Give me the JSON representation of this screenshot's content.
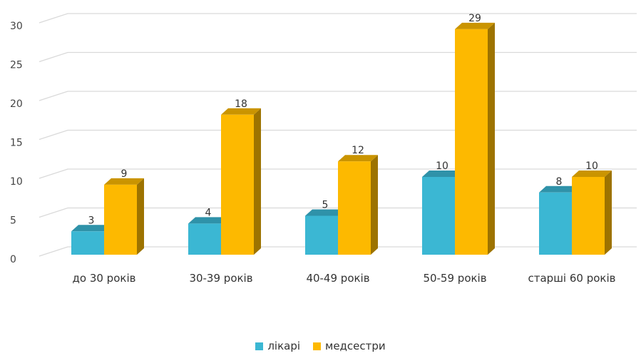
{
  "chart_data": {
    "type": "bar",
    "title": "",
    "xlabel": "",
    "ylabel": "",
    "categories": [
      "до 30 років",
      "30-39 років",
      "40-49 років",
      "50-59 років",
      "старші 60 років"
    ],
    "series": [
      {
        "name": "лікарі",
        "values": [
          3,
          4,
          5,
          10,
          8
        ],
        "color": "#3bb7d3"
      },
      {
        "name": "медсестри",
        "values": [
          9,
          18,
          12,
          29,
          10
        ],
        "color": "#fdb900"
      }
    ],
    "ylim": [
      0,
      30
    ],
    "yticks": [
      "0",
      "5",
      "10",
      "15",
      "20",
      "25",
      "30"
    ],
    "grid": true,
    "legend_position": "bottom",
    "data_labels": true,
    "style": "3d-clustered"
  }
}
